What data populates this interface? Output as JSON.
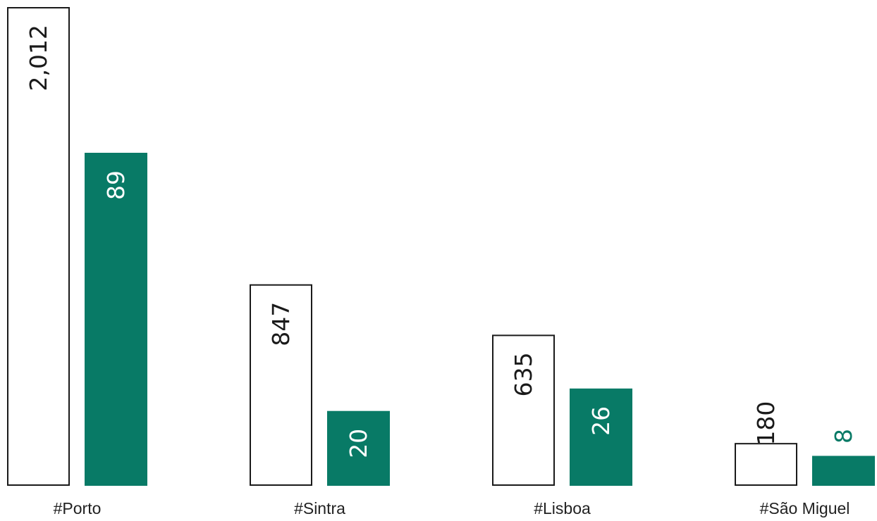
{
  "chart_data": {
    "type": "bar",
    "categories": [
      "#Porto",
      "#Sintra",
      "#Lisboa",
      "#São Miguel"
    ],
    "series": [
      {
        "values": [
          2012,
          847,
          635,
          180
        ],
        "labels": [
          "2,012",
          "847",
          "635",
          "180"
        ],
        "style": "outline",
        "color": "#1a1a1a"
      },
      {
        "values": [
          89,
          20,
          26,
          8
        ],
        "labels": [
          "89",
          "20",
          "26",
          "8"
        ],
        "style": "filled",
        "color": "#087a66"
      }
    ]
  }
}
